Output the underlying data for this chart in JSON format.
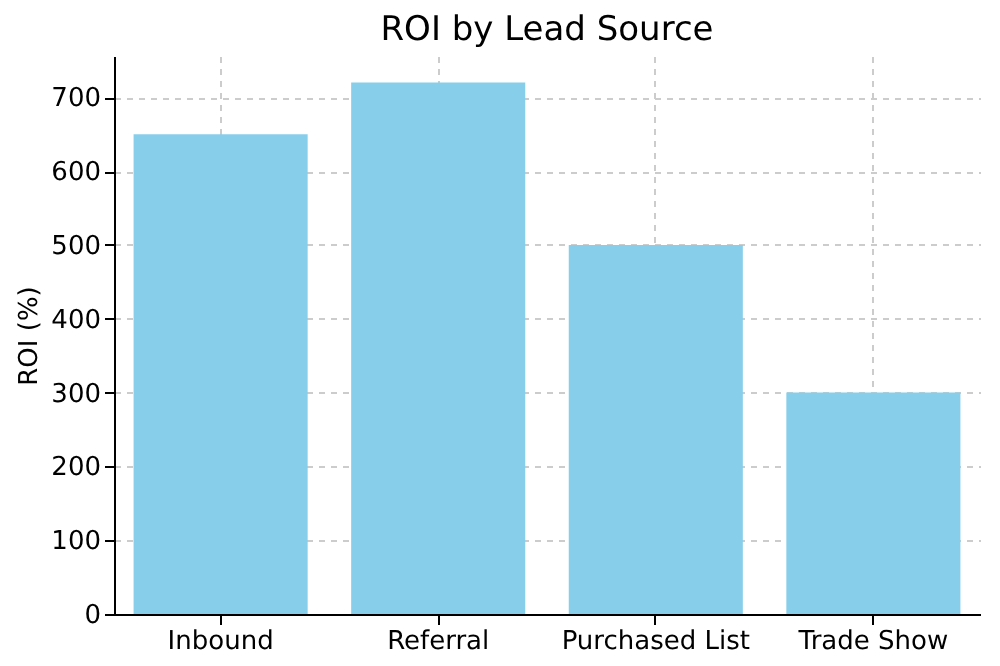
{
  "chart_data": {
    "type": "bar",
    "title": "ROI by Lead Source",
    "ylabel": "ROI (%)",
    "categories": [
      "Inbound",
      "Referral",
      "Purchased List",
      "Trade Show"
    ],
    "values": [
      650,
      720,
      500,
      300
    ],
    "color": "#87ceeb",
    "ylim": [
      0,
      756
    ],
    "yticks": [
      0,
      100,
      200,
      300,
      400,
      500,
      600,
      700
    ],
    "grid": true
  }
}
